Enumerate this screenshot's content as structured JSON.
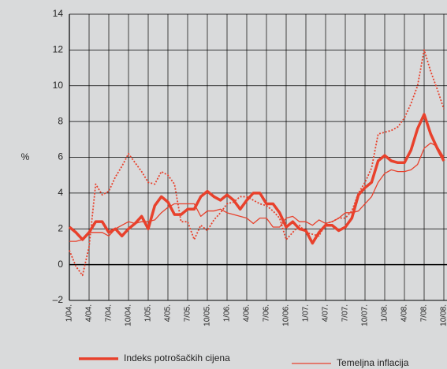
{
  "chart_data": {
    "type": "line",
    "y_label": "%",
    "categories": [
      "1/04.",
      null,
      null,
      "4/04.",
      null,
      null,
      "7/04.",
      null,
      null,
      "10/04.",
      null,
      null,
      "1/05.",
      null,
      null,
      "4/05.",
      null,
      null,
      "7/05.",
      null,
      null,
      "10/05.",
      null,
      null,
      "1/06.",
      null,
      null,
      "4/06.",
      null,
      null,
      "7/06.",
      null,
      null,
      "10/06.",
      null,
      null,
      "1/07.",
      null,
      null,
      "4/07.",
      null,
      null,
      "7/07.",
      null,
      null,
      "10/07.",
      null,
      null,
      "1/08.",
      null,
      null,
      "4/08.",
      null,
      null,
      "7/08.",
      null,
      null,
      "10/08."
    ],
    "series": [
      {
        "name": "Indeks potrošačkih cijena",
        "color": "#e8412c",
        "style": "thick",
        "values": [
          2.1,
          1.8,
          1.4,
          1.8,
          2.4,
          2.4,
          1.8,
          2.0,
          1.6,
          2.0,
          2.3,
          2.7,
          2.0,
          3.3,
          3.8,
          3.5,
          2.8,
          2.8,
          3.1,
          3.1,
          3.8,
          4.1,
          3.8,
          3.6,
          3.9,
          3.6,
          3.1,
          3.6,
          4.0,
          4.0,
          3.4,
          3.4,
          2.9,
          2.1,
          2.4,
          2.0,
          1.9,
          1.2,
          1.8,
          2.2,
          2.2,
          1.9,
          2.1,
          2.6,
          3.9,
          4.3,
          4.6,
          5.8,
          6.1,
          5.8,
          5.7,
          5.7,
          6.4,
          7.6,
          8.4,
          7.3,
          6.5,
          5.8
        ]
      },
      {
        "name": "Temeljna inflacija",
        "color": "#e8412c",
        "style": "thin",
        "values": [
          1.3,
          1.3,
          1.4,
          1.8,
          1.8,
          1.8,
          1.6,
          2.0,
          2.2,
          2.4,
          2.3,
          2.4,
          2.4,
          2.5,
          2.9,
          3.2,
          3.4,
          3.4,
          3.4,
          3.4,
          2.7,
          3.0,
          3.0,
          3.1,
          2.9,
          2.8,
          2.7,
          2.6,
          2.3,
          2.6,
          2.6,
          2.1,
          2.1,
          2.6,
          2.7,
          2.4,
          2.4,
          2.2,
          2.5,
          2.3,
          2.4,
          2.6,
          2.9,
          2.9,
          3.0,
          3.4,
          3.8,
          4.6,
          5.1,
          5.3,
          5.2,
          5.2,
          5.3,
          5.6,
          6.5,
          6.8,
          6.6,
          6.0
        ]
      },
      {
        "color": "#e8412c",
        "style": "dotted",
        "values": [
          0.8,
          -0.1,
          -0.6,
          1.0,
          4.5,
          3.9,
          4.1,
          4.9,
          5.5,
          6.2,
          5.7,
          5.2,
          4.6,
          4.5,
          5.2,
          5.0,
          4.5,
          2.4,
          2.4,
          1.4,
          2.2,
          1.9,
          2.5,
          2.9,
          3.4,
          3.5,
          3.8,
          3.8,
          3.6,
          3.4,
          3.3,
          3.0,
          2.6,
          1.4,
          1.8,
          2.2,
          1.8,
          1.7,
          1.6,
          2.3,
          2.4,
          2.6,
          2.6,
          3.0,
          4.0,
          4.6,
          5.4,
          7.3,
          7.4,
          7.5,
          7.7,
          8.2,
          9.0,
          10.0,
          12.0,
          10.8,
          9.8,
          8.7
        ]
      }
    ],
    "ylim": [
      -2,
      14
    ],
    "yticks": [
      {
        "value": -2,
        "label": "–2"
      },
      0,
      2,
      4,
      6,
      8,
      10,
      12,
      14
    ],
    "grid": true
  }
}
